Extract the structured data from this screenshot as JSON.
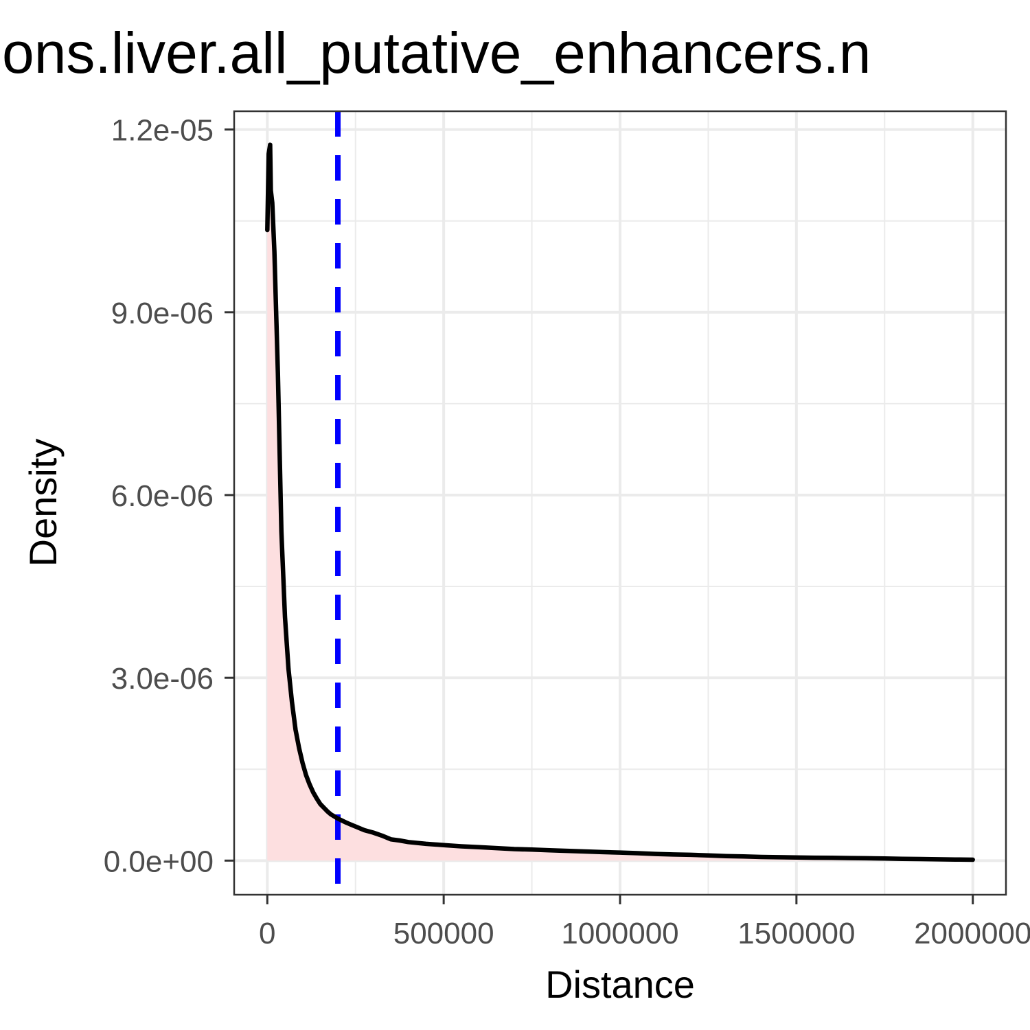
{
  "chart_data": {
    "type": "area",
    "title": "ons.liver.all_putative_enhancers.n",
    "xlabel": "Distance",
    "ylabel": "Density",
    "xlim": [
      -94000,
      2094000
    ],
    "ylim": [
      -5.6e-07,
      1.23e-05
    ],
    "x_ticks": [
      {
        "value": 0,
        "label": "0"
      },
      {
        "value": 500000,
        "label": "500000"
      },
      {
        "value": 1000000,
        "label": "1000000"
      },
      {
        "value": 1500000,
        "label": "1500000"
      },
      {
        "value": 2000000,
        "label": "2000000"
      }
    ],
    "y_ticks": [
      {
        "value": 0,
        "label": "0.0e+00"
      },
      {
        "value": 3e-06,
        "label": "3.0e-06"
      },
      {
        "value": 6e-06,
        "label": "6.0e-06"
      },
      {
        "value": 9e-06,
        "label": "9.0e-06"
      },
      {
        "value": 1.2e-05,
        "label": "1.2e-05"
      }
    ],
    "x_minor_ticks": [
      250000,
      750000,
      1250000,
      1750000
    ],
    "y_minor_ticks": [
      1.5e-06,
      4.5e-06,
      7.5e-06,
      1.05e-05
    ],
    "grid": true,
    "legend": "none",
    "vline": {
      "x": 200000,
      "style": "dashed",
      "color": "#0000ff"
    },
    "series": [
      {
        "color": "#000000",
        "fill": "#fddfe0",
        "x": [
          0,
          4000,
          8000,
          10000,
          14000,
          20000,
          30000,
          40000,
          50000,
          60000,
          70000,
          80000,
          90000,
          100000,
          110000,
          120000,
          130000,
          140000,
          150000,
          160000,
          170000,
          180000,
          190000,
          200000,
          225000,
          250000,
          275000,
          300000,
          325000,
          350000,
          375000,
          400000,
          450000,
          500000,
          550000,
          600000,
          650000,
          700000,
          750000,
          800000,
          850000,
          900000,
          950000,
          1000000,
          1050000,
          1100000,
          1150000,
          1200000,
          1250000,
          1300000,
          1350000,
          1400000,
          1450000,
          1500000,
          1550000,
          1600000,
          1650000,
          1700000,
          1750000,
          1800000,
          1850000,
          1900000,
          1950000,
          2000000
        ],
        "y": [
          1.035e-05,
          1.16e-05,
          1.175e-05,
          1.1e-05,
          1.08e-05,
          1e-05,
          8e-06,
          5.4e-06,
          4e-06,
          3.15e-06,
          2.6e-06,
          2.15e-06,
          1.85e-06,
          1.6e-06,
          1.4e-06,
          1.25e-06,
          1.12e-06,
          1.02e-06,
          9.3e-07,
          8.7e-07,
          8.1e-07,
          7.6e-07,
          7.25e-07,
          6.9e-07,
          6.2e-07,
          5.6e-07,
          5e-07,
          4.6e-07,
          4.1e-07,
          3.5e-07,
          3.3e-07,
          3.05e-07,
          2.75e-07,
          2.55e-07,
          2.35e-07,
          2.2e-07,
          2.05e-07,
          1.9e-07,
          1.8e-07,
          1.7e-07,
          1.6e-07,
          1.5e-07,
          1.4e-07,
          1.32e-07,
          1.22e-07,
          1.1e-07,
          1e-07,
          9.5e-08,
          8.5e-08,
          7.5e-08,
          6.8e-08,
          6e-08,
          5.5e-08,
          5.2e-08,
          4.8e-08,
          4.5e-08,
          4.2e-08,
          3.8e-08,
          3.5e-08,
          3e-08,
          2.6e-08,
          2.2e-08,
          1.8e-08,
          1.5e-08
        ]
      }
    ]
  }
}
